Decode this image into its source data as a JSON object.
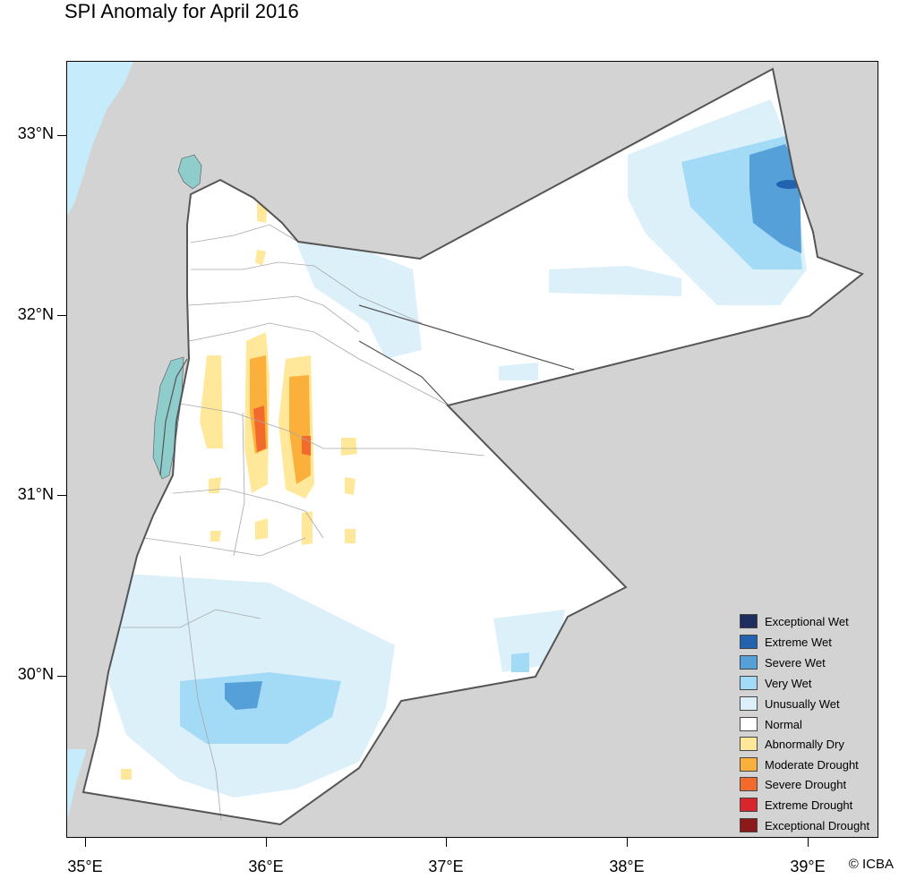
{
  "title": "SPI Anomaly for April 2016",
  "credit": "© ICBA",
  "colors": {
    "land_outside": "#d3d3d3",
    "water": "#c6ecfb",
    "lake": "#8fcccc",
    "border": "#555555",
    "governorate_lines": "#a8a8a8"
  },
  "axes": {
    "lat_labels": [
      "33°N",
      "32°N",
      "31°N",
      "30°N"
    ],
    "lon_labels": [
      "35°E",
      "36°E",
      "37°E",
      "38°E",
      "39°E"
    ]
  },
  "legend": [
    {
      "label": "Exceptional Wet",
      "color": "#1c2d5e"
    },
    {
      "label": "Extreme Wet",
      "color": "#2262ae"
    },
    {
      "label": "Severe Wet",
      "color": "#56a0da"
    },
    {
      "label": "Very Wet",
      "color": "#a3dbf7"
    },
    {
      "label": "Unusually Wet",
      "color": "#dcf0fa"
    },
    {
      "label": "Normal",
      "color": "#ffffff"
    },
    {
      "label": "Abnormally Dry",
      "color": "#ffe89a"
    },
    {
      "label": "Moderate Drought",
      "color": "#fbb03b"
    },
    {
      "label": "Severe Drought",
      "color": "#f26b2c"
    },
    {
      "label": "Extreme Drought",
      "color": "#d7262e"
    },
    {
      "label": "Exceptional Drought",
      "color": "#8c1a1a"
    }
  ]
}
